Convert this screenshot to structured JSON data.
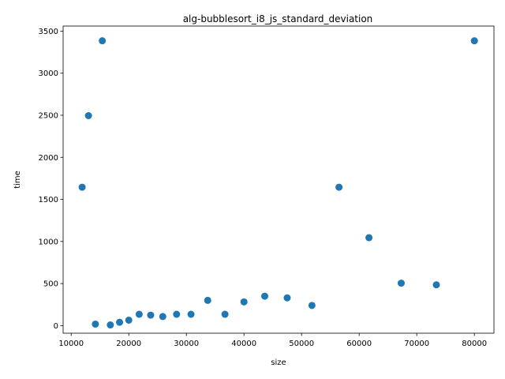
{
  "chart_data": {
    "type": "scatter",
    "title": "alg-bubblesort_i8_js_standard_deviation",
    "xlabel": "size",
    "ylabel": "time",
    "xlim": [
      8600,
      83400
    ],
    "ylim": [
      -90,
      3560
    ],
    "xticks": [
      10000,
      20000,
      30000,
      40000,
      50000,
      60000,
      70000,
      80000
    ],
    "yticks": [
      0,
      500,
      1000,
      1500,
      2000,
      2500,
      3000,
      3500
    ],
    "grid": false,
    "legend": "none",
    "marker_color": "#1f77b4",
    "points": [
      {
        "x": 11900,
        "y": 1645
      },
      {
        "x": 13000,
        "y": 2495
      },
      {
        "x": 14200,
        "y": 18
      },
      {
        "x": 15400,
        "y": 3385
      },
      {
        "x": 16800,
        "y": 8
      },
      {
        "x": 18400,
        "y": 40
      },
      {
        "x": 20000,
        "y": 65
      },
      {
        "x": 21800,
        "y": 135
      },
      {
        "x": 23800,
        "y": 125
      },
      {
        "x": 25900,
        "y": 108
      },
      {
        "x": 28300,
        "y": 135
      },
      {
        "x": 30800,
        "y": 135
      },
      {
        "x": 33700,
        "y": 300
      },
      {
        "x": 36700,
        "y": 135
      },
      {
        "x": 40000,
        "y": 282
      },
      {
        "x": 43600,
        "y": 350
      },
      {
        "x": 47500,
        "y": 330
      },
      {
        "x": 51800,
        "y": 240
      },
      {
        "x": 56500,
        "y": 1645
      },
      {
        "x": 61700,
        "y": 1045
      },
      {
        "x": 67300,
        "y": 505
      },
      {
        "x": 73400,
        "y": 485
      },
      {
        "x": 80000,
        "y": 3385
      }
    ]
  }
}
